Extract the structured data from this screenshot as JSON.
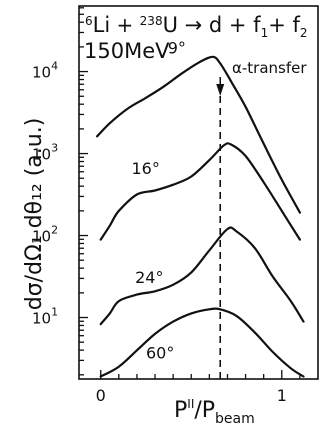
{
  "chart_data": {
    "type": "line",
    "reaction": {
      "projectile": "Li",
      "projectile_mass": "6",
      "target": "U",
      "target_mass": "238",
      "products": "d + f",
      "sub1": "1",
      "plus": "+ f",
      "sub2": "2"
    },
    "energy_label": "150MeV",
    "annotation": "α-transfer",
    "annotation_x": 0.66,
    "xlabel": {
      "main": "P",
      "sup": "II",
      "slash": "/P",
      "sub": "beam"
    },
    "ylabel": "dσ/dΩ₁ dθ₁₂ (a.u.)",
    "xlim": [
      -0.12,
      1.2
    ],
    "ylim_log10": [
      0.25,
      4.8
    ],
    "y_scale": "log",
    "x_ticks": [
      {
        "value": 0,
        "label": "0"
      },
      {
        "value": 1,
        "label": "1"
      }
    ],
    "y_ticks": [
      {
        "value": 10,
        "base": "10",
        "exp": "1"
      },
      {
        "value": 100,
        "base": "10",
        "exp": "2"
      },
      {
        "value": 1000,
        "base": "10",
        "exp": "3"
      },
      {
        "value": 10000,
        "base": "10",
        "exp": "4"
      }
    ],
    "series": [
      {
        "name": "9°",
        "label_x": 0.37,
        "label_log10": 4.22,
        "x": [
          -0.02,
          0.05,
          0.15,
          0.25,
          0.35,
          0.45,
          0.55,
          0.62,
          0.66,
          0.72,
          0.8,
          0.9,
          1.0,
          1.1
        ],
        "log10y": [
          3.21,
          3.37,
          3.55,
          3.68,
          3.82,
          3.98,
          4.12,
          4.18,
          4.1,
          3.88,
          3.57,
          3.12,
          2.68,
          2.28
        ]
      },
      {
        "name": "16°",
        "label_x": 0.17,
        "label_log10": 2.75,
        "x": [
          0.0,
          0.05,
          0.1,
          0.2,
          0.3,
          0.4,
          0.5,
          0.6,
          0.68,
          0.72,
          0.8,
          0.9,
          1.0,
          1.1
        ],
        "log10y": [
          1.95,
          2.12,
          2.3,
          2.5,
          2.55,
          2.62,
          2.72,
          2.92,
          3.1,
          3.11,
          2.97,
          2.65,
          2.3,
          1.95
        ]
      },
      {
        "name": "24°",
        "label_x": 0.19,
        "label_log10": 1.42,
        "x": [
          0.0,
          0.05,
          0.1,
          0.2,
          0.3,
          0.4,
          0.5,
          0.6,
          0.7,
          0.75,
          0.85,
          0.95,
          1.05,
          1.12
        ],
        "log10y": [
          0.92,
          1.05,
          1.2,
          1.28,
          1.32,
          1.4,
          1.55,
          1.82,
          2.08,
          2.05,
          1.85,
          1.5,
          1.2,
          0.95
        ]
      },
      {
        "name": "60°",
        "label_x": 0.25,
        "label_log10": 0.5,
        "x": [
          0.0,
          0.1,
          0.2,
          0.3,
          0.4,
          0.5,
          0.6,
          0.66,
          0.75,
          0.85,
          0.95,
          1.05,
          1.12
        ],
        "log10y": [
          0.28,
          0.4,
          0.6,
          0.8,
          0.95,
          1.05,
          1.1,
          1.1,
          1.02,
          0.82,
          0.58,
          0.38,
          0.28
        ]
      }
    ]
  }
}
